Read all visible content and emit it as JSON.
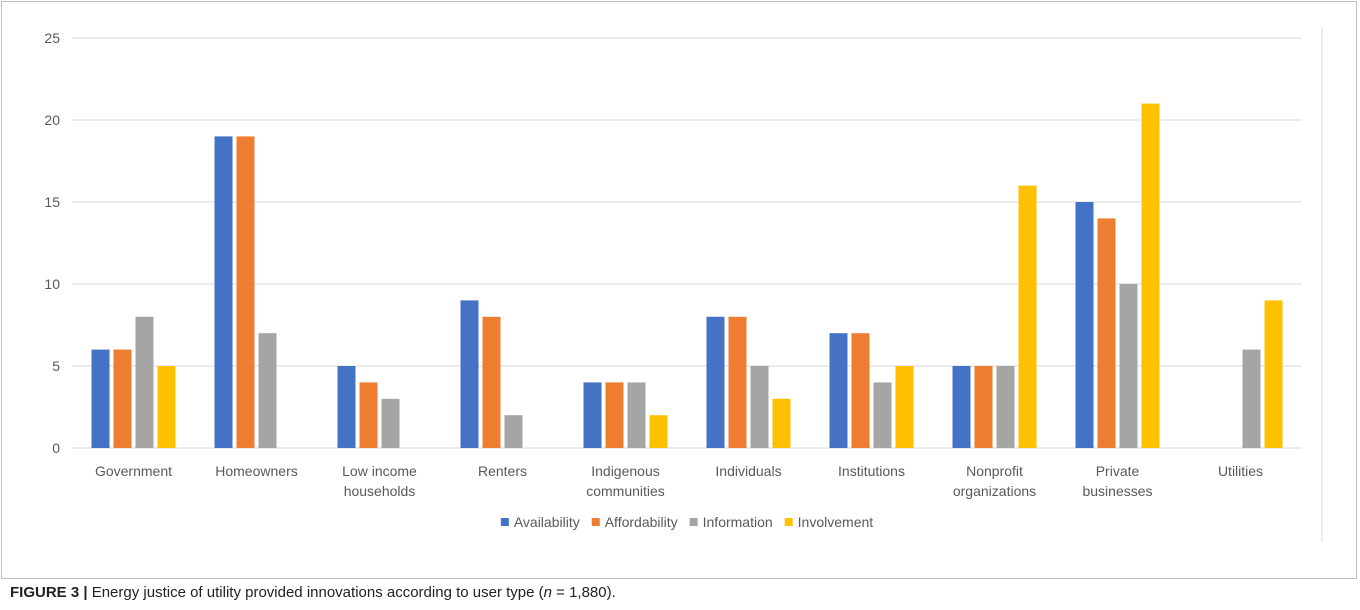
{
  "chart_data": {
    "type": "bar",
    "categories": [
      [
        "Government"
      ],
      [
        "Homeowners"
      ],
      [
        "Low income",
        "households"
      ],
      [
        "Renters"
      ],
      [
        "Indigenous",
        "communities"
      ],
      [
        "Individuals"
      ],
      [
        "Institutions"
      ],
      [
        "Nonprofit",
        "organizations"
      ],
      [
        "Private",
        "businesses"
      ],
      [
        "Utilities"
      ]
    ],
    "series": [
      {
        "name": "Availability",
        "color": "#4472C4",
        "values": [
          6,
          19,
          5,
          9,
          4,
          8,
          7,
          5,
          15,
          null
        ]
      },
      {
        "name": "Affordability",
        "color": "#ED7D31",
        "values": [
          6,
          19,
          4,
          8,
          4,
          8,
          7,
          5,
          14,
          null
        ]
      },
      {
        "name": "Information",
        "color": "#A5A5A5",
        "values": [
          8,
          7,
          3,
          2,
          4,
          5,
          4,
          5,
          10,
          6
        ]
      },
      {
        "name": "Involvement",
        "color": "#FFC000",
        "values": [
          5,
          null,
          null,
          null,
          2,
          3,
          5,
          16,
          21,
          9
        ]
      }
    ],
    "yticks": [
      0,
      5,
      10,
      15,
      20,
      25
    ],
    "ylim": [
      0,
      25
    ],
    "grid": true,
    "legend_position": "bottom"
  },
  "caption": {
    "figure_label": "FIGURE 3 |",
    "text_before": " Energy justice of utility provided innovations according to user type (",
    "n_symbol": "n",
    "text_after": " = 1,880)."
  }
}
